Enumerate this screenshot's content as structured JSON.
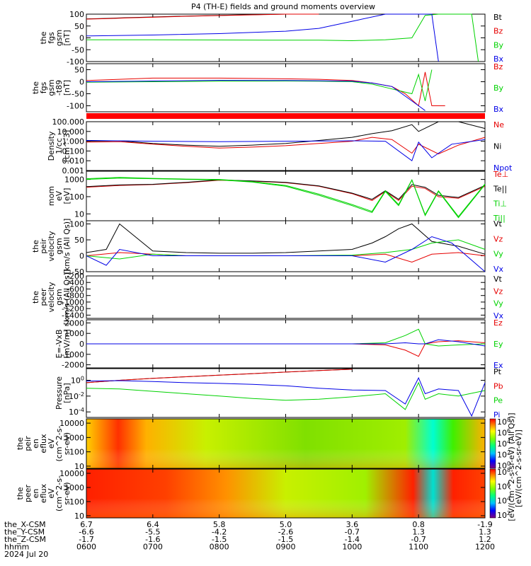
{
  "title": "P4 (TH-E) fields and ground moments overview",
  "colors": {
    "black": "#000000",
    "red": "#e60000",
    "green": "#00d200",
    "blue": "#0000e6",
    "fill": "#ff0000"
  },
  "chart_data": [
    {
      "type": "line",
      "id": "fgs",
      "ylabel": [
        "the",
        "fgs",
        "gsm",
        "[nT]"
      ],
      "ylim": [
        -100,
        100
      ],
      "yticks": [
        "100",
        "50",
        "0",
        "-50",
        "-100"
      ],
      "series": [
        {
          "name": "Bt",
          "color": "black",
          "x": [
            6.0,
            6.3,
            6.6,
            7.0,
            7.5,
            8.0,
            8.5,
            9.0,
            9.5
          ],
          "y": [
            80,
            82,
            85,
            88,
            92,
            95,
            98,
            100,
            100
          ]
        },
        {
          "name": "Bz",
          "color": "red",
          "x": [
            6.0,
            6.3,
            6.6,
            7.0,
            7.5,
            8.0,
            8.5,
            9.0,
            9.5
          ],
          "y": [
            79,
            81,
            84,
            87,
            91,
            94,
            97,
            100,
            100
          ]
        },
        {
          "name": "By",
          "color": "green",
          "x": [
            6.0,
            7.0,
            8.0,
            9.0,
            9.5,
            10.0,
            10.5,
            10.9,
            11.1,
            11.3,
            11.8,
            11.9
          ],
          "y": [
            -8,
            -8,
            -9,
            -10,
            -10,
            -12,
            -8,
            0,
            95,
            100,
            100,
            -100
          ]
        },
        {
          "name": "Bx",
          "color": "blue",
          "x": [
            6.0,
            7.0,
            8.0,
            9.0,
            9.5,
            10.0,
            10.5,
            11.0,
            11.2,
            11.3
          ],
          "y": [
            8,
            12,
            18,
            28,
            40,
            70,
            100,
            100,
            100,
            -100
          ]
        }
      ]
    },
    {
      "type": "line",
      "id": "fgs-lp",
      "ylabel": [
        "the",
        "fgs",
        "gsm",
        "-t89",
        "[nT]"
      ],
      "ylim": [
        -125,
        75
      ],
      "yticks": [
        "50",
        "0",
        "-50",
        "-100"
      ],
      "series": [
        {
          "name": "Bz",
          "color": "red",
          "x": [
            6.0,
            6.5,
            7.0,
            8.0,
            9.0,
            9.5,
            10.0,
            10.3,
            10.6,
            10.8,
            11.0,
            11.1,
            11.2,
            11.4
          ],
          "y": [
            5,
            10,
            15,
            15,
            12,
            10,
            5,
            -5,
            -20,
            -50,
            -100,
            40,
            -100,
            -100
          ]
        },
        {
          "name": "By",
          "color": "green",
          "x": [
            6.0,
            7.0,
            8.0,
            9.0,
            9.5,
            10.0,
            10.3,
            10.6,
            10.9,
            11.0,
            11.1,
            11.2
          ],
          "y": [
            -2,
            0,
            2,
            3,
            2,
            0,
            -10,
            -30,
            -50,
            30,
            -80,
            50
          ]
        },
        {
          "name": "Bx",
          "color": "blue",
          "x": [
            6.0,
            7.0,
            8.0,
            9.0,
            9.5,
            10.0,
            10.3,
            10.6,
            10.8,
            11.0,
            11.1
          ],
          "y": [
            0,
            3,
            6,
            5,
            4,
            2,
            -5,
            -20,
            -60,
            -100,
            -120
          ]
        }
      ]
    },
    {
      "type": "line",
      "id": "density",
      "ylabel": [
        "Density",
        "1/cc",
        "[cm^-3]"
      ],
      "yscale": "log",
      "ylim": [
        0.001,
        100
      ],
      "yticks": [
        "100.000",
        "10.000",
        "1.000",
        "0.100",
        "0.010",
        "0.001"
      ],
      "series": [
        {
          "name": "Ne",
          "color": "red",
          "x": [
            6.0,
            6.5,
            7.0,
            7.5,
            8.0,
            8.5,
            9.0,
            9.5,
            10.0,
            10.3,
            10.6,
            10.9,
            11.0,
            11.3,
            11.6,
            12.0
          ],
          "y": [
            0.8,
            0.9,
            0.5,
            0.3,
            0.2,
            0.25,
            0.35,
            0.6,
            1.0,
            2.5,
            1.5,
            0.06,
            0.5,
            0.05,
            0.4,
            2.5
          ]
        },
        {
          "name": "Ni",
          "color": "black",
          "x": [
            6.0,
            6.5,
            7.0,
            7.5,
            8.0,
            8.5,
            9.0,
            9.5,
            10.0,
            10.3,
            10.6,
            10.9,
            11.0,
            11.3,
            11.6,
            12.0
          ],
          "y": [
            1.0,
            1.1,
            0.6,
            0.4,
            0.3,
            0.4,
            0.6,
            1.2,
            2.5,
            6.0,
            12.0,
            50.0,
            10.0,
            100.0,
            100.0,
            20.0
          ]
        },
        {
          "name": "Npot",
          "color": "blue",
          "x": [
            6.0,
            7.0,
            8.0,
            9.0,
            10.0,
            10.5,
            10.9,
            11.0,
            11.2,
            11.5,
            12.0
          ],
          "y": [
            1.2,
            1.0,
            0.9,
            1.0,
            1.1,
            1.0,
            0.01,
            0.8,
            0.02,
            0.5,
            1.5
          ]
        }
      ]
    },
    {
      "type": "line",
      "id": "temp",
      "ylabel": [
        "mom",
        "eV",
        "[eV]"
      ],
      "yscale": "log",
      "ylim": [
        4,
        3000
      ],
      "yticks": [
        "1000",
        "100",
        "10"
      ],
      "series": [
        {
          "name": "Te⊥",
          "color": "red",
          "x": [
            6.0,
            6.5,
            7.0,
            7.5,
            8.0,
            8.5,
            9.0,
            9.5,
            10.0,
            10.3,
            10.5,
            10.7,
            10.9,
            11.1,
            11.3,
            11.6,
            12.0
          ],
          "y": [
            350,
            450,
            500,
            650,
            900,
            800,
            650,
            400,
            150,
            60,
            200,
            60,
            400,
            300,
            100,
            80,
            400
          ]
        },
        {
          "name": "Te||",
          "color": "black",
          "x": [
            6.0,
            6.5,
            7.0,
            7.5,
            8.0,
            8.5,
            9.0,
            9.5,
            10.0,
            10.3,
            10.5,
            10.7,
            10.9,
            11.1,
            11.3,
            11.6,
            12.0
          ],
          "y": [
            380,
            480,
            520,
            680,
            950,
            820,
            680,
            420,
            160,
            70,
            220,
            70,
            500,
            350,
            120,
            90,
            450
          ]
        },
        {
          "name": "Ti⊥",
          "color": "green",
          "x": [
            6.0,
            6.5,
            7.0,
            7.5,
            8.0,
            8.5,
            9.0,
            9.5,
            10.0,
            10.3,
            10.5,
            10.7,
            10.9,
            11.1,
            11.3,
            11.6,
            12.0
          ],
          "y": [
            1000,
            1200,
            1100,
            1000,
            950,
            700,
            400,
            120,
            30,
            12,
            200,
            30,
            900,
            8,
            200,
            6,
            500
          ]
        },
        {
          "name": "Ti||",
          "color": "green",
          "x": [
            6.0,
            6.5,
            7.0,
            7.5,
            8.0,
            8.5,
            9.0,
            9.5,
            10.0,
            10.3,
            10.5,
            10.7,
            10.9,
            11.1,
            11.3,
            11.6,
            12.0
          ],
          "y": [
            1100,
            1300,
            1150,
            1050,
            1000,
            750,
            450,
            140,
            35,
            14,
            220,
            35,
            950,
            9,
            220,
            7,
            550
          ]
        }
      ]
    },
    {
      "type": "line",
      "id": "velocity",
      "ylabel": [
        "the",
        "peir",
        "velocity",
        "gsm",
        "[km/s (All Qs)]"
      ],
      "ylim": [
        -50,
        110
      ],
      "yticks": [
        "100",
        "50",
        "0",
        "-50"
      ],
      "series": [
        {
          "name": "Vt",
          "color": "black",
          "x": [
            6.0,
            6.3,
            6.5,
            7.0,
            7.5,
            8.0,
            8.5,
            9.0,
            9.5,
            10.0,
            10.3,
            10.5,
            10.7,
            10.9,
            11.2,
            11.6,
            12.0
          ],
          "y": [
            10,
            20,
            100,
            15,
            10,
            8,
            8,
            10,
            15,
            20,
            40,
            60,
            85,
            100,
            45,
            30,
            5
          ]
        },
        {
          "name": "Vz",
          "color": "red",
          "x": [
            6.0,
            6.5,
            7.0,
            7.5,
            8.0,
            9.0,
            10.0,
            10.5,
            10.9,
            11.2,
            11.6,
            12.0
          ],
          "y": [
            0,
            10,
            5,
            0,
            0,
            0,
            0,
            5,
            -20,
            5,
            10,
            0
          ]
        },
        {
          "name": "Vy",
          "color": "green",
          "x": [
            6.0,
            6.5,
            7.0,
            7.5,
            8.0,
            9.0,
            10.0,
            10.5,
            10.9,
            11.2,
            11.6,
            12.0
          ],
          "y": [
            0,
            -10,
            5,
            0,
            0,
            0,
            2,
            10,
            20,
            40,
            50,
            20
          ]
        },
        {
          "name": "Vx",
          "color": "blue",
          "x": [
            6.0,
            6.3,
            6.5,
            7.0,
            8.0,
            9.0,
            10.0,
            10.5,
            10.9,
            11.2,
            11.5,
            12.0
          ],
          "y": [
            0,
            -30,
            20,
            0,
            0,
            0,
            0,
            -20,
            20,
            60,
            40,
            -50
          ]
        }
      ]
    },
    {
      "type": "line",
      "id": "peer-velocity",
      "ylabel": [
        "the",
        "peer",
        "velocity",
        "gsm",
        "[km/s (All Qs)]"
      ],
      "ylim": [
        -1500,
        -200
      ],
      "yticks": [
        "-200",
        "-400",
        "-600",
        "-800",
        "-1000",
        "-1200",
        "-1400"
      ],
      "series": [
        {
          "name": "Vt",
          "color": "black",
          "x": [],
          "y": []
        },
        {
          "name": "Vz",
          "color": "red",
          "x": [],
          "y": []
        },
        {
          "name": "Vy",
          "color": "green",
          "x": [],
          "y": []
        },
        {
          "name": "Vx",
          "color": "blue",
          "x": [],
          "y": []
        }
      ]
    },
    {
      "type": "line",
      "id": "efield",
      "ylabel": [
        "E=-VxB",
        "[mV/m]"
      ],
      "ylim": [
        -2300,
        2300
      ],
      "yticks": [
        "2000",
        "1000",
        "0",
        "-1000",
        "-2000"
      ],
      "series": [
        {
          "name": "Ez",
          "color": "red",
          "x": [
            6.0,
            8.0,
            10.0,
            10.5,
            10.8,
            11.0,
            11.1,
            11.3,
            11.6,
            12.0
          ],
          "y": [
            0,
            0,
            0,
            -100,
            -600,
            -1200,
            0,
            200,
            300,
            100
          ]
        },
        {
          "name": "Ey",
          "color": "green",
          "x": [
            6.0,
            8.0,
            10.0,
            10.5,
            10.8,
            11.0,
            11.1,
            11.3,
            11.6,
            12.0
          ],
          "y": [
            0,
            0,
            0,
            100,
            800,
            1400,
            0,
            -200,
            -100,
            0
          ]
        },
        {
          "name": "Ex",
          "color": "blue",
          "x": [
            6.0,
            8.0,
            10.0,
            10.5,
            10.8,
            11.0,
            11.1,
            11.3,
            11.6,
            12.0
          ],
          "y": [
            0,
            0,
            0,
            0,
            100,
            0,
            0,
            400,
            200,
            -200
          ]
        }
      ]
    },
    {
      "type": "line",
      "id": "pressure",
      "ylabel": [
        "Pressure",
        "[nPa]"
      ],
      "yscale": "log",
      "ylim": [
        2e-05,
        30
      ],
      "yticks": [
        "10^0",
        "10^-2",
        "10^-4"
      ],
      "series": [
        {
          "name": "Pt",
          "color": "black",
          "x": [
            6.0,
            6.5,
            7.0,
            7.5,
            8.0,
            8.5,
            9.0,
            9.5,
            10.0
          ],
          "y": [
            0.5,
            1.0,
            1.8,
            2.8,
            4.5,
            7.0,
            11.0,
            17.0,
            25.0
          ]
        },
        {
          "name": "Pb",
          "color": "red",
          "x": [
            6.0,
            6.5,
            7.0,
            7.5,
            8.0,
            8.5,
            9.0,
            9.5,
            10.0
          ],
          "y": [
            0.5,
            1.0,
            1.8,
            2.8,
            4.5,
            7.0,
            11.0,
            17.0,
            25.0
          ]
        },
        {
          "name": "Pe",
          "color": "green",
          "x": [
            6.0,
            6.5,
            7.0,
            7.5,
            8.0,
            8.5,
            9.0,
            9.5,
            10.0,
            10.5,
            10.8,
            11.0,
            11.1,
            11.3,
            11.6,
            12.0
          ],
          "y": [
            0.1,
            0.08,
            0.04,
            0.02,
            0.01,
            0.005,
            0.003,
            0.004,
            0.008,
            0.02,
            0.0002,
            0.5,
            0.004,
            0.02,
            0.01,
            0.05
          ]
        },
        {
          "name": "Pi",
          "color": "blue",
          "x": [
            6.0,
            6.5,
            7.0,
            7.5,
            8.0,
            8.5,
            9.0,
            9.5,
            10.0,
            10.5,
            10.8,
            11.0,
            11.1,
            11.3,
            11.6,
            11.8,
            12.0
          ],
          "y": [
            0.8,
            0.9,
            0.7,
            0.5,
            0.4,
            0.3,
            0.2,
            0.1,
            0.06,
            0.05,
            0.001,
            2.0,
            0.02,
            0.08,
            0.05,
            3e-05,
            0.5
          ]
        }
      ]
    },
    {
      "type": "heatmap",
      "id": "peir-spec",
      "ylabel": [
        "the",
        "peir",
        "en",
        "eflux",
        "eV",
        "(cm^2-s-",
        "sr-eV)"
      ],
      "yscale": "log",
      "ylim": [
        7,
        20000
      ],
      "yticks": [
        "10000",
        "1000",
        "100",
        "10"
      ],
      "description_colors": "energy spectrogram, eflux colour-coded"
    },
    {
      "type": "heatmap",
      "id": "peer-spec",
      "ylabel": [
        "the",
        "peer",
        "en",
        "eflux",
        "eV",
        "(cm^2-s-",
        "sr-eV)"
      ],
      "yscale": "log",
      "ylim": [
        7,
        20000
      ],
      "yticks": [
        "10000",
        "1000",
        "100",
        "10"
      ]
    }
  ],
  "colorbar": {
    "label": "[eV/(cm^2-s-sr-eV)]",
    "label2": "[eV/(cm^2-s-sr-eV) (All Qs)]",
    "ticks_top": [
      "10^8",
      "10^6",
      "10^4",
      "10^2",
      "10^0"
    ],
    "ticks_bottom": [
      "10^8",
      "10^6",
      "10^4",
      "10^2"
    ]
  },
  "x_axis": {
    "xlim": [
      6.0,
      12.0
    ],
    "hours": [
      6,
      7,
      8,
      9,
      10,
      11,
      12
    ],
    "rows": [
      {
        "label": "the_X-CSM",
        "values": [
          "6.7",
          "6.4",
          "5.8",
          "5.0",
          "3.6",
          "0.8",
          "-1.9"
        ]
      },
      {
        "label": "the_Y-CSM",
        "values": [
          "-6.6",
          "-5.5",
          "-4.2",
          "-2.6",
          "-0.7",
          "1.3",
          "1.3"
        ]
      },
      {
        "label": "the_Z-CSM",
        "values": [
          "-1.7",
          "-1.6",
          "-1.5",
          "-1.5",
          "-1.4",
          "-0.7",
          "1.2"
        ]
      },
      {
        "label": "hhmm",
        "values": [
          "0600",
          "0700",
          "0800",
          "0900",
          "1000",
          "1100",
          "1200"
        ]
      }
    ],
    "date": "2024 Jul 20"
  }
}
